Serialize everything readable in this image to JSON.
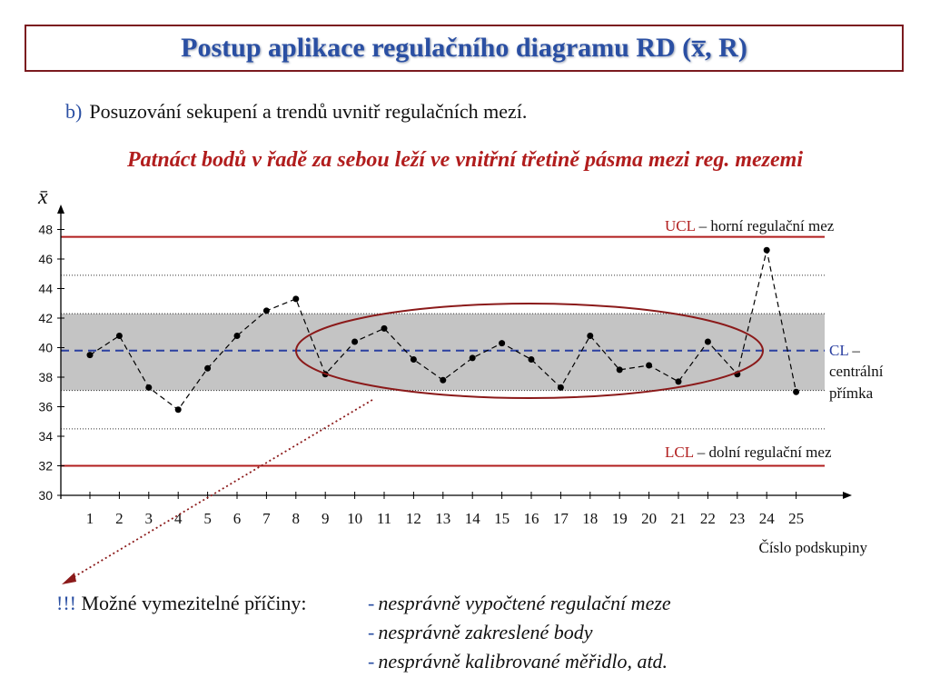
{
  "header": {
    "title": "Postup aplikace regulačního diagramu RD (x̅, R)"
  },
  "subtitle": {
    "marker": "b)",
    "text": "Posuzování sekupení a trendů uvnitř regulačních mezí."
  },
  "highlight": "Patnáct bodů v řadě za sebou leží ve vnitřní třetině pásma mezi reg. mezemi",
  "causes": {
    "prefix": "!!!",
    "label": "Možné vymezitelné příčiny:",
    "items": [
      "nesprávně vypočtené regulační meze",
      "nesprávně zakreslené body",
      "nesprávně kalibrované měřidlo, atd."
    ]
  },
  "chart_data": {
    "type": "line",
    "ylabel": "x̄",
    "xlabel": "Číslo podskupiny",
    "ylim": [
      30,
      49
    ],
    "y_ticks": [
      30,
      32,
      34,
      36,
      38,
      40,
      42,
      44,
      46,
      48
    ],
    "x": [
      1,
      2,
      3,
      4,
      5,
      6,
      7,
      8,
      9,
      10,
      11,
      12,
      13,
      14,
      15,
      16,
      17,
      18,
      19,
      20,
      21,
      22,
      23,
      24,
      25
    ],
    "values": [
      39.5,
      40.8,
      37.3,
      35.8,
      38.6,
      40.8,
      42.5,
      43.3,
      38.2,
      40.4,
      41.3,
      39.2,
      37.8,
      39.3,
      40.3,
      39.2,
      37.3,
      40.8,
      38.5,
      38.8,
      37.7,
      40.4,
      38.2,
      46.6,
      37.0
    ],
    "ucl": 47.5,
    "cl": 39.8,
    "lcl": 32.0,
    "upper_third": 42.3,
    "lower_third": 37.1,
    "upper_zone_b": 44.9,
    "lower_zone_b": 34.5,
    "ucl_label": {
      "abbr": "UCL",
      "text": "– horní regulační mez"
    },
    "cl_label": {
      "abbr": "CL",
      "text": "–",
      "line2": "centrální",
      "line3": "přímka"
    },
    "lcl_label": {
      "abbr": "LCL",
      "text": "– dolní regulační mez"
    },
    "colors": {
      "limit": "#b11d1d",
      "center": "#2a3fa0",
      "band": "#c4c4c4",
      "ellipse": "#8b1a1a",
      "arrow": "#8b1a1a"
    }
  }
}
